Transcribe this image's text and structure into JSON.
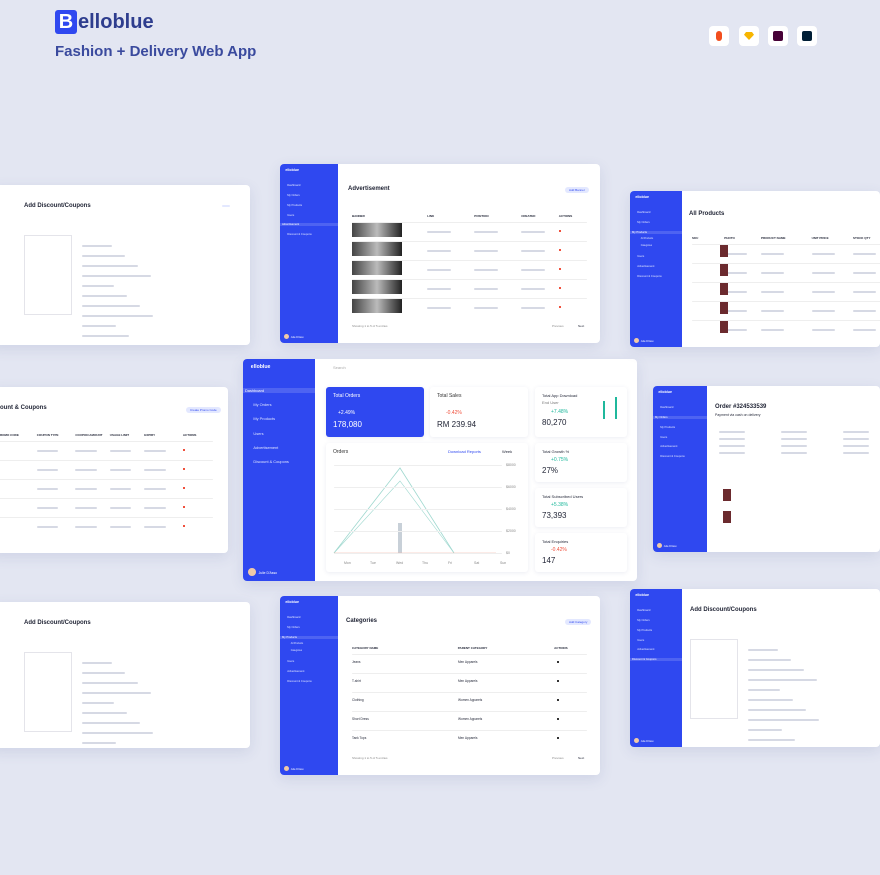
{
  "header": {
    "logo_letter": "B",
    "logo_rest": "elloblue",
    "subtitle": "Fashion + Delivery Web App"
  },
  "nav": {
    "brand": "elloblue",
    "search": "Search",
    "menu": [
      "Dashboard",
      "My Orders",
      "My Products",
      "Users",
      "Advertisement",
      "Discount & Coupons"
    ],
    "submenu": [
      "All Products",
      "Categories"
    ],
    "user": "Julie D'Asso"
  },
  "dashboard": {
    "total_orders": {
      "label": "Total Orders",
      "change": "+2.49%",
      "value": "178,080"
    },
    "total_sales": {
      "label": "Total Sales",
      "change": "-0.42%",
      "value": "RM 239.94"
    },
    "app_download": {
      "label": "Total App Download",
      "sub": "End User",
      "change": "+7.48%",
      "value": "80,270"
    },
    "growth": {
      "label": "Total Growth %",
      "change": "+0.75%",
      "value": "27%"
    },
    "subscribed": {
      "label": "Total Subscribed Users",
      "change": "+5.38%",
      "value": "73,393"
    },
    "enquiries": {
      "label": "Total Enquiries",
      "change": "-0.42%",
      "value": "147"
    },
    "orders_chart": {
      "title": "Orders",
      "download": "Download Reports",
      "period": "Week",
      "yticks": [
        "$8000",
        "$6000",
        "$4000",
        "$2000",
        "$0"
      ],
      "days": [
        "Mon",
        "Tue",
        "Wed",
        "Thu",
        "Fri",
        "Sat",
        "Sun"
      ]
    }
  },
  "cards": {
    "coupon_top": {
      "title": "Add Discount/Coupons"
    },
    "advertisement": {
      "title": "Advertisement",
      "button": "Add Banner",
      "headers": [
        "BANNER",
        "LINK",
        "POSITION",
        "CREATED",
        "ACTIONS"
      ],
      "footer": "Showing 1 to 5 of 5 entries",
      "prev": "Previous",
      "next": "Next"
    },
    "products": {
      "title": "All Products",
      "headers": [
        "SKU",
        "PHOTO",
        "PRODUCT NAME",
        "UNIT PRICE",
        "STOCK QTY",
        "ACTIONS"
      ]
    },
    "coupons_list": {
      "title": "ount & Coupons",
      "button": "Create Promo Code",
      "headers": [
        "PROMO CODE",
        "COUPON TYPE",
        "COUPON AMOUNT",
        "USAGE LIMIT",
        "EXPIRY",
        "ACTIONS"
      ]
    },
    "order": {
      "title": "Order #324533539",
      "sub": "Payment via cash on delivery"
    },
    "coupon_bottom_left": {
      "title": "Add Discount/Coupons"
    },
    "categories": {
      "title": "Categories",
      "button": "Add Category",
      "headers": [
        "CATEGORY NAME",
        "PARENT CATEGORY",
        "ACTIONS"
      ],
      "names": [
        "Jeans",
        "T-shirt",
        "Clothing",
        "Short Dress",
        "Tank Tops"
      ],
      "parents": [
        "Men Apparels",
        "Men Apparels",
        "Women Apparels",
        "Women Apparels",
        "Men Apparels"
      ],
      "footer": "Showing 1 to 5 of 5 entries",
      "prev": "Previous",
      "next": "Next"
    },
    "coupon_bottom_right": {
      "title": "Add Discount/Coupons"
    }
  }
}
